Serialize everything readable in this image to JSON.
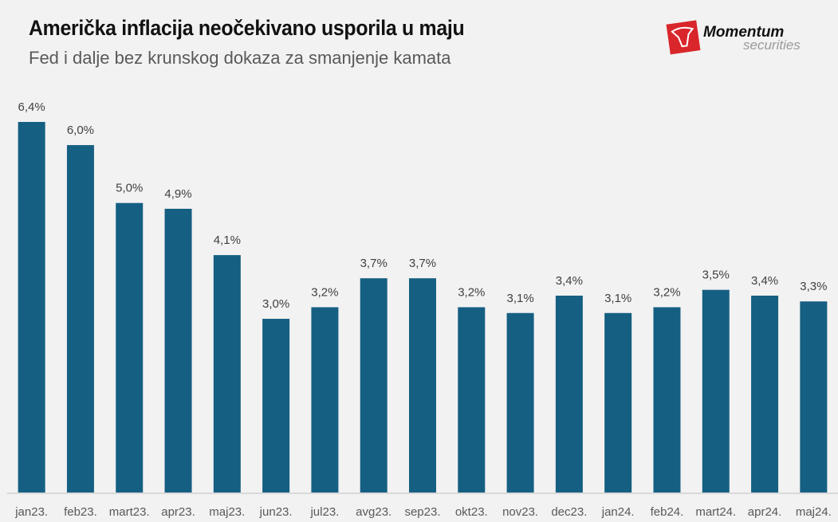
{
  "chart_data": {
    "type": "bar",
    "title": "Američka inflacija neočekivano usporila u maju",
    "subtitle": "Fed i dalje bez krunskog dokaza za smanjenje kamata",
    "categories": [
      "jan23.",
      "feb23.",
      "mart23.",
      "apr23.",
      "maj23.",
      "jun23.",
      "jul23.",
      "avg23.",
      "sep23.",
      "okt23.",
      "nov23.",
      "dec23.",
      "jan24.",
      "feb24.",
      "mart24.",
      "apr24.",
      "maj24."
    ],
    "values": [
      6.4,
      6.0,
      5.0,
      4.9,
      4.1,
      3.0,
      3.2,
      3.7,
      3.7,
      3.2,
      3.1,
      3.4,
      3.1,
      3.2,
      3.5,
      3.4,
      3.3
    ],
    "data_labels": [
      "6,4%",
      "6,0%",
      "5,0%",
      "4,9%",
      "4,1%",
      "3,0%",
      "3,2%",
      "3,7%",
      "3,7%",
      "3,2%",
      "3,1%",
      "3,4%",
      "3,1%",
      "3,2%",
      "3,5%",
      "3,4%",
      "3,3%"
    ],
    "xlabel": "",
    "ylabel": "",
    "ylim": [
      0,
      6.4
    ],
    "grid": false,
    "legend": "none",
    "bar_color": "#155f82"
  },
  "logo": {
    "brand": "Momentum",
    "tagline": "securities",
    "color": "#d9262b"
  }
}
